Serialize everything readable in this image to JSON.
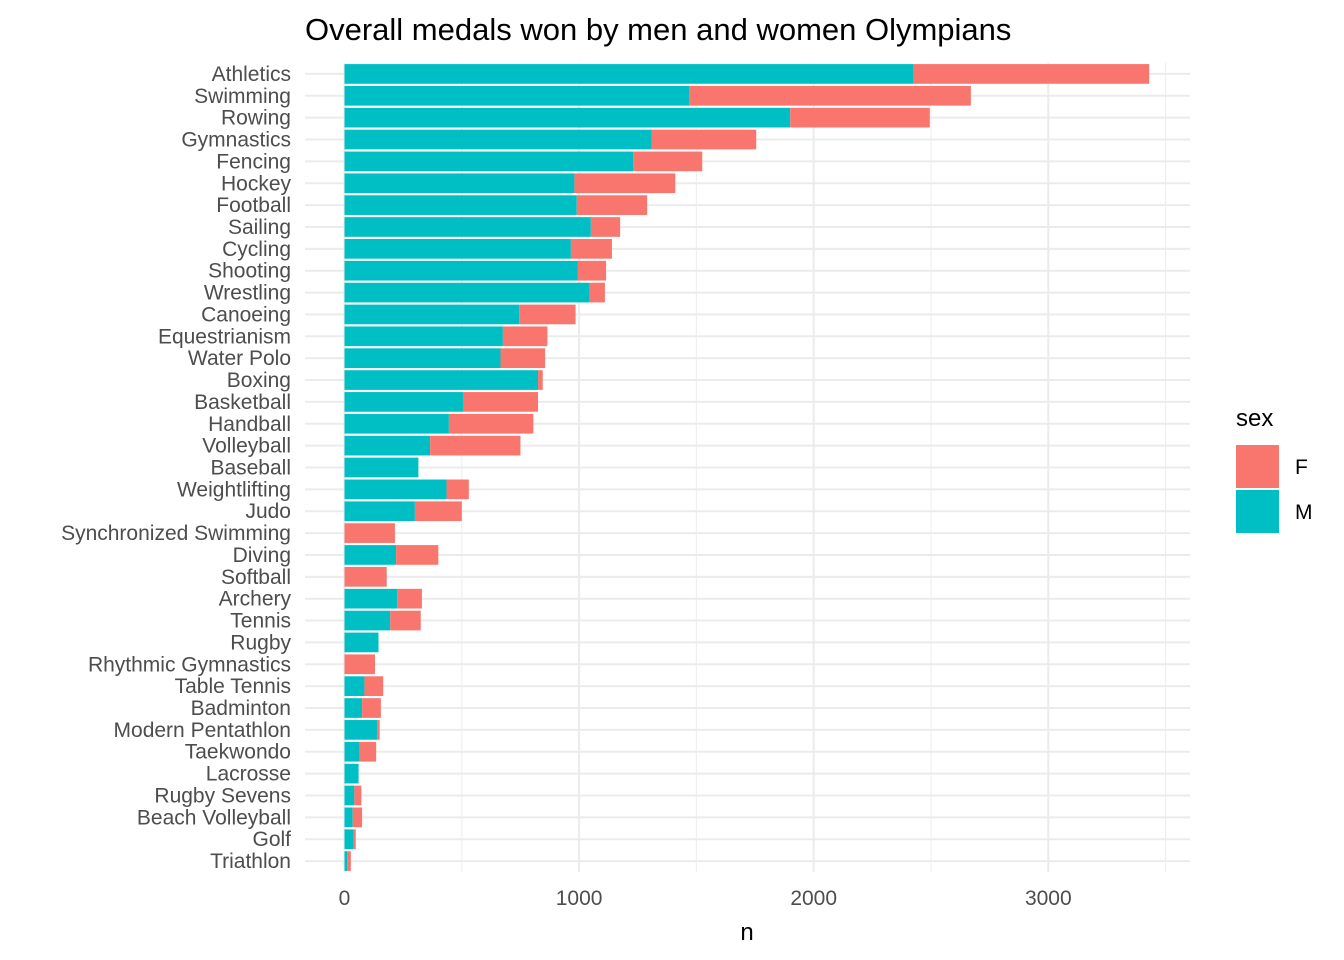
{
  "chart_data": {
    "type": "bar",
    "orientation": "horizontal",
    "stacked": true,
    "title": "Overall medals won by men and women Olympians",
    "xlabel": "n",
    "ylabel": "",
    "xlim": [
      0,
      3600
    ],
    "xticks": [
      0,
      1000,
      2000,
      3000
    ],
    "grid": true,
    "legend_position": "right",
    "legend_title": "sex",
    "categories": [
      "Athletics",
      "Swimming",
      "Rowing",
      "Gymnastics",
      "Fencing",
      "Hockey",
      "Football",
      "Sailing",
      "Cycling",
      "Shooting",
      "Wrestling",
      "Canoeing",
      "Equestrianism",
      "Water Polo",
      "Boxing",
      "Basketball",
      "Handball",
      "Volleyball",
      "Baseball",
      "Weightlifting",
      "Judo",
      "Synchronized Swimming",
      "Diving",
      "Softball",
      "Archery",
      "Tennis",
      "Rugby",
      "Rhythmic Gymnastics",
      "Table Tennis",
      "Badminton",
      "Modern Pentathlon",
      "Taekwondo",
      "Lacrosse",
      "Rugby Sevens",
      "Beach Volleyball",
      "Golf",
      "Triathlon"
    ],
    "series": [
      {
        "name": "M",
        "color": "#00BFC4",
        "values": [
          2425,
          1470,
          1900,
          1310,
          1230,
          980,
          990,
          1050,
          965,
          995,
          1045,
          745,
          675,
          665,
          825,
          505,
          445,
          365,
          315,
          435,
          300,
          0,
          220,
          0,
          225,
          195,
          145,
          0,
          85,
          75,
          140,
          65,
          60,
          42,
          35,
          38,
          12
        ]
      },
      {
        "name": "F",
        "color": "#F8766D",
        "values": [
          1005,
          1200,
          595,
          445,
          295,
          430,
          300,
          125,
          175,
          120,
          65,
          240,
          190,
          190,
          20,
          320,
          360,
          385,
          0,
          95,
          200,
          215,
          180,
          180,
          105,
          130,
          0,
          130,
          80,
          80,
          10,
          70,
          0,
          30,
          40,
          10,
          15
        ]
      }
    ]
  }
}
